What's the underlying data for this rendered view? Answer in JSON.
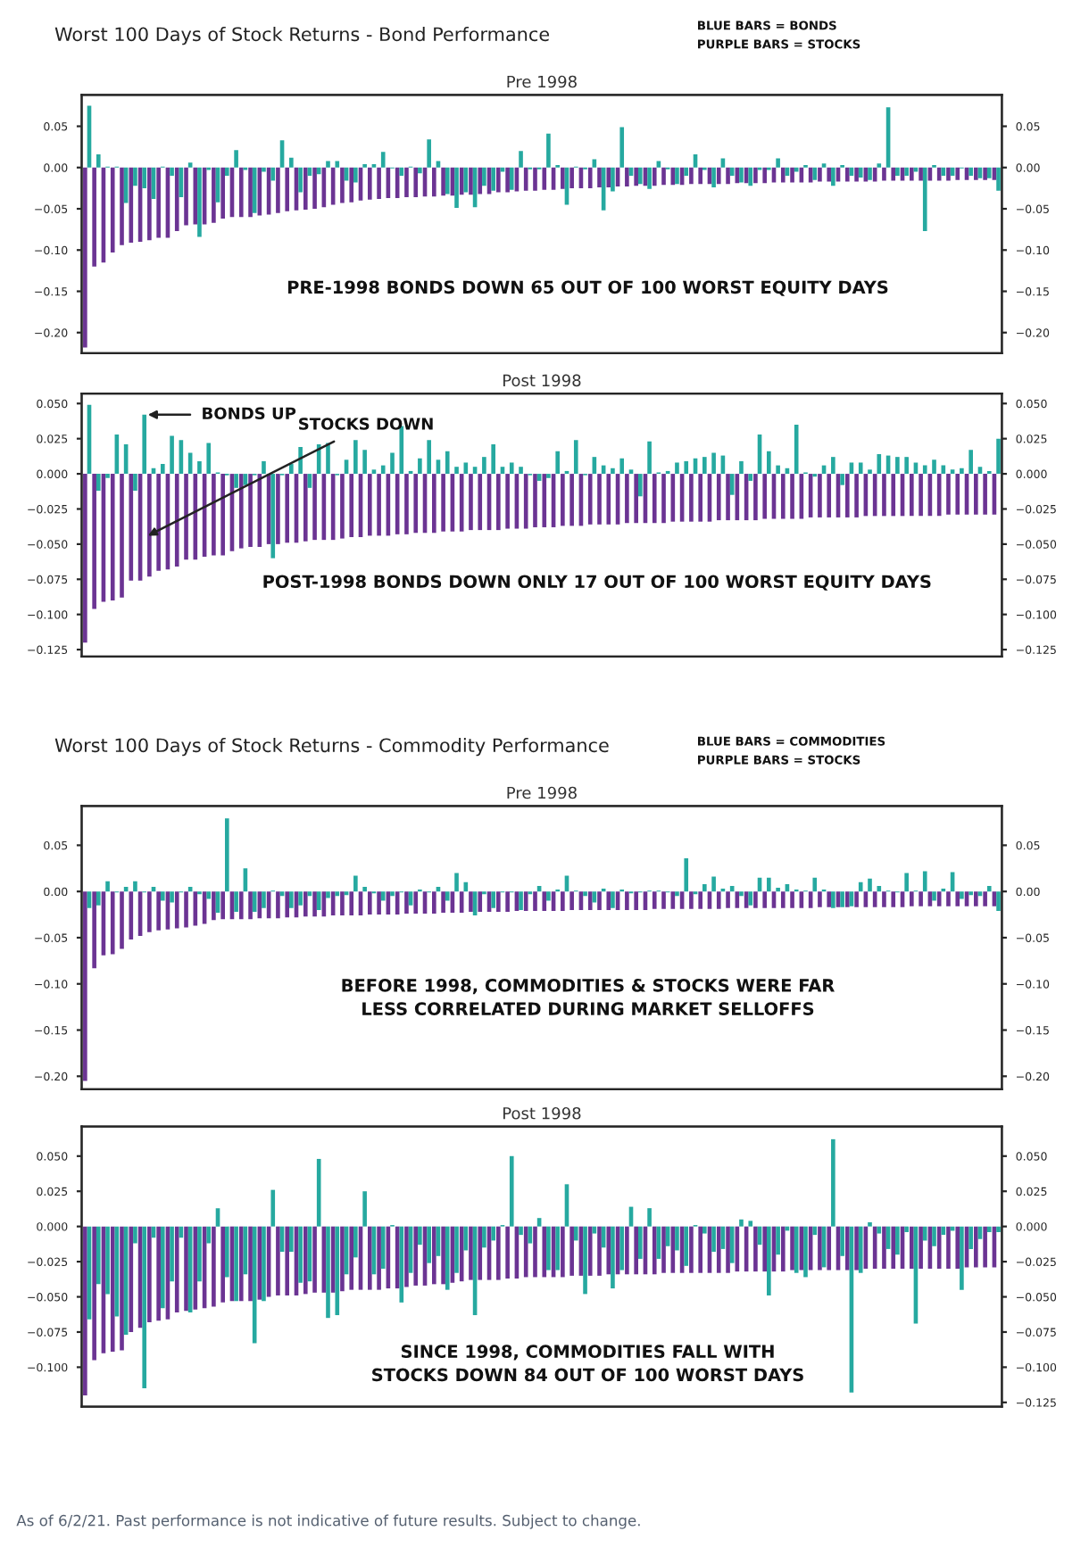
{
  "chart_data": [
    {
      "type": "bar",
      "title": "Pre 1998",
      "annotations": [
        "Worst 100 Days of Stock Returns - Bond Performance",
        "BLUE BARS = BONDS",
        "PURPLE BARS = STOCKS",
        "PRE-1998 BONDS DOWN 65 OUT OF 100 WORST EQUITY DAYS"
      ],
      "categories": [
        null,
        null,
        null,
        null,
        null,
        null,
        null,
        null,
        null,
        null,
        null,
        null,
        null,
        null,
        null,
        null,
        null,
        null,
        null,
        null,
        null,
        null,
        null,
        null,
        null,
        null,
        null,
        null,
        null,
        null,
        null,
        null,
        null,
        null,
        null,
        null,
        null,
        null,
        null,
        null,
        null,
        null,
        null,
        null,
        null,
        null,
        null,
        null,
        null,
        null,
        null,
        null,
        null,
        null,
        null,
        null,
        null,
        null,
        null,
        null,
        null,
        null,
        null,
        null,
        null,
        null,
        null,
        null,
        null,
        null,
        null,
        null,
        null,
        null,
        null,
        null,
        null,
        null,
        null,
        null,
        null,
        null,
        null,
        null,
        null,
        null,
        null,
        null,
        null,
        null,
        null,
        null,
        null,
        null,
        null,
        null,
        null,
        null,
        null,
        null
      ],
      "tick_labels": "y",
      "ylim": [
        -0.225,
        0.088
      ],
      "yticks": [
        {
          "value": -0.2,
          "label": "−0.20"
        },
        {
          "value": -0.15,
          "label": "−0.15"
        },
        {
          "value": -0.1,
          "label": "−0.10"
        },
        {
          "value": -0.05,
          "label": "−0.05"
        },
        {
          "value": 0,
          "label": "0.00"
        },
        {
          "value": 0.05,
          "label": "0.05"
        }
      ],
      "y2lim": [
        -0.225,
        0.088
      ],
      "y2ticks": [
        {
          "value": -0.2,
          "label": "−0.20"
        },
        {
          "value": -0.15,
          "label": "−0.15"
        },
        {
          "value": -0.1,
          "label": "−0.10"
        },
        {
          "value": -0.05,
          "label": "−0.05"
        },
        {
          "value": 0,
          "label": "0.00"
        },
        {
          "value": 0.05,
          "label": "0.05"
        }
      ],
      "series": [
        {
          "color": "#6b3493",
          "values": [
            -0.218,
            -0.12,
            -0.115,
            -0.103,
            -0.094,
            -0.091,
            -0.09,
            -0.088,
            -0.085,
            -0.085,
            -0.077,
            -0.07,
            -0.069,
            -0.069,
            -0.067,
            -0.062,
            -0.06,
            -0.06,
            -0.06,
            -0.058,
            -0.057,
            -0.055,
            -0.053,
            -0.052,
            -0.051,
            -0.05,
            -0.048,
            -0.045,
            -0.043,
            -0.042,
            -0.04,
            -0.039,
            -0.038,
            -0.037,
            -0.037,
            -0.036,
            -0.036,
            -0.035,
            -0.035,
            -0.034,
            -0.034,
            -0.033,
            -0.033,
            -0.032,
            -0.032,
            -0.03,
            -0.03,
            -0.029,
            -0.028,
            -0.028,
            -0.027,
            -0.027,
            -0.026,
            -0.025,
            -0.025,
            -0.025,
            -0.024,
            -0.024,
            -0.023,
            -0.023,
            -0.022,
            -0.022,
            -0.022,
            -0.021,
            -0.021,
            -0.021,
            -0.02,
            -0.02,
            -0.02,
            -0.02,
            -0.02,
            -0.019,
            -0.019,
            -0.019,
            -0.019,
            -0.018,
            -0.018,
            -0.018,
            -0.018,
            -0.018,
            -0.017,
            -0.017,
            -0.017,
            -0.017,
            -0.017,
            -0.017,
            -0.017,
            -0.016,
            -0.016,
            -0.016,
            -0.016,
            -0.016,
            -0.016,
            -0.016,
            -0.016,
            -0.015,
            -0.015,
            -0.015,
            -0.015,
            -0.015
          ]
        },
        {
          "color": "#26a9a0",
          "values": [
            0.075,
            0.016,
            0.001,
            0.001,
            -0.043,
            -0.022,
            -0.025,
            -0.038,
            0.001,
            -0.01,
            -0.036,
            0.006,
            -0.084,
            -0.003,
            -0.042,
            -0.01,
            0.021,
            -0.003,
            -0.055,
            -0.005,
            -0.016,
            0.033,
            0.012,
            -0.03,
            -0.01,
            -0.008,
            0.008,
            0.008,
            -0.016,
            -0.018,
            0.004,
            0.004,
            0.019,
            -0.001,
            -0.01,
            0.001,
            -0.007,
            0.034,
            0.008,
            -0.032,
            -0.049,
            -0.03,
            -0.048,
            -0.022,
            -0.028,
            -0.005,
            -0.027,
            0.02,
            -0.002,
            -0.002,
            0.041,
            0.003,
            -0.045,
            0.001,
            -0.002,
            0.01,
            -0.052,
            -0.029,
            0.049,
            -0.01,
            -0.02,
            -0.026,
            0.008,
            -0.002,
            -0.02,
            -0.01,
            0.016,
            -0.003,
            -0.024,
            0.011,
            -0.01,
            -0.018,
            -0.022,
            -0.003,
            -0.003,
            0.011,
            -0.01,
            -0.005,
            0.003,
            -0.015,
            0.005,
            -0.022,
            0.003,
            -0.01,
            -0.012,
            -0.015,
            0.005,
            0.073,
            -0.01,
            -0.01,
            -0.005,
            -0.077,
            0.003,
            -0.01,
            -0.01,
            -0.001,
            -0.01,
            -0.013,
            -0.013,
            -0.028
          ]
        }
      ]
    },
    {
      "type": "bar",
      "title": "Post 1998",
      "annotations": [
        "BONDS UP",
        "STOCKS DOWN",
        "POST-1998 BONDS DOWN ONLY 17 OUT OF 100 WORST EQUITY DAYS"
      ],
      "categories": [
        null,
        null,
        null,
        null,
        null,
        null,
        null,
        null,
        null,
        null,
        null,
        null,
        null,
        null,
        null,
        null,
        null,
        null,
        null,
        null,
        null,
        null,
        null,
        null,
        null,
        null,
        null,
        null,
        null,
        null,
        null,
        null,
        null,
        null,
        null,
        null,
        null,
        null,
        null,
        null,
        null,
        null,
        null,
        null,
        null,
        null,
        null,
        null,
        null,
        null,
        null,
        null,
        null,
        null,
        null,
        null,
        null,
        null,
        null,
        null,
        null,
        null,
        null,
        null,
        null,
        null,
        null,
        null,
        null,
        null,
        null,
        null,
        null,
        null,
        null,
        null,
        null,
        null,
        null,
        null,
        null,
        null,
        null,
        null,
        null,
        null,
        null,
        null,
        null,
        null,
        null,
        null,
        null,
        null,
        null,
        null,
        null,
        null,
        null,
        null
      ],
      "tick_labels": "y",
      "ylim": [
        -0.13,
        0.057
      ],
      "yticks": [
        {
          "value": -0.125,
          "label": "−0.125"
        },
        {
          "value": -0.1,
          "label": "−0.100"
        },
        {
          "value": -0.075,
          "label": "−0.075"
        },
        {
          "value": -0.05,
          "label": "−0.050"
        },
        {
          "value": -0.025,
          "label": "−0.025"
        },
        {
          "value": 0,
          "label": "0.000"
        },
        {
          "value": 0.025,
          "label": "0.025"
        },
        {
          "value": 0.05,
          "label": "0.050"
        }
      ],
      "y2lim": [
        -0.13,
        0.057
      ],
      "y2ticks": [
        {
          "value": -0.125,
          "label": "−0.125"
        },
        {
          "value": -0.1,
          "label": "−0.100"
        },
        {
          "value": -0.075,
          "label": "−0.075"
        },
        {
          "value": -0.05,
          "label": "−0.050"
        },
        {
          "value": -0.025,
          "label": "−0.025"
        },
        {
          "value": 0,
          "label": "0.000"
        },
        {
          "value": 0.025,
          "label": "0.025"
        },
        {
          "value": 0.05,
          "label": "0.050"
        }
      ],
      "series": [
        {
          "color": "#6b3493",
          "values": [
            -0.12,
            -0.096,
            -0.091,
            -0.09,
            -0.088,
            -0.076,
            -0.076,
            -0.073,
            -0.069,
            -0.068,
            -0.066,
            -0.061,
            -0.061,
            -0.059,
            -0.058,
            -0.058,
            -0.055,
            -0.053,
            -0.052,
            -0.052,
            -0.05,
            -0.05,
            -0.049,
            -0.049,
            -0.048,
            -0.047,
            -0.047,
            -0.047,
            -0.046,
            -0.045,
            -0.045,
            -0.044,
            -0.044,
            -0.044,
            -0.043,
            -0.043,
            -0.042,
            -0.042,
            -0.042,
            -0.041,
            -0.041,
            -0.041,
            -0.04,
            -0.04,
            -0.04,
            -0.04,
            -0.039,
            -0.039,
            -0.039,
            -0.038,
            -0.038,
            -0.038,
            -0.037,
            -0.037,
            -0.037,
            -0.036,
            -0.036,
            -0.036,
            -0.036,
            -0.035,
            -0.035,
            -0.035,
            -0.035,
            -0.035,
            -0.034,
            -0.034,
            -0.034,
            -0.034,
            -0.034,
            -0.033,
            -0.033,
            -0.033,
            -0.033,
            -0.033,
            -0.032,
            -0.032,
            -0.032,
            -0.032,
            -0.032,
            -0.031,
            -0.031,
            -0.031,
            -0.031,
            -0.031,
            -0.031,
            -0.03,
            -0.03,
            -0.03,
            -0.03,
            -0.03,
            -0.03,
            -0.03,
            -0.03,
            -0.03,
            -0.029,
            -0.029,
            -0.029,
            -0.029,
            -0.029,
            -0.029
          ]
        },
        {
          "color": "#26a9a0",
          "values": [
            0.049,
            -0.012,
            -0.003,
            0.028,
            0.021,
            -0.012,
            0.042,
            0.004,
            0.007,
            0.027,
            0.024,
            0.015,
            0.009,
            0.022,
            0.001,
            -0.001,
            -0.01,
            -0.008,
            -0.001,
            0.009,
            -0.06,
            -0.001,
            0.007,
            0.019,
            -0.01,
            0.021,
            0.022,
            -0.001,
            0.01,
            0.024,
            0.017,
            0.003,
            0.006,
            0.015,
            0.034,
            0.002,
            0.011,
            0.024,
            0.01,
            0.016,
            0.005,
            0.008,
            0.005,
            0.012,
            0.021,
            0.005,
            0.008,
            0.005,
            -0.001,
            -0.005,
            -0.003,
            0.016,
            0.002,
            0.024,
            -0.001,
            0.012,
            0.006,
            0.004,
            0.011,
            0.003,
            -0.016,
            0.023,
            0.001,
            0.002,
            0.008,
            0.009,
            0.011,
            0.012,
            0.015,
            0.013,
            -0.015,
            0.009,
            -0.005,
            0.028,
            0.016,
            0.006,
            0.004,
            0.035,
            0.001,
            -0.002,
            0.006,
            0.012,
            -0.008,
            0.008,
            0.008,
            0.003,
            0.014,
            0.013,
            0.012,
            0.012,
            0.008,
            0.006,
            0.01,
            0.006,
            0.003,
            0.004,
            0.017,
            0.005,
            0.002,
            0.025
          ]
        }
      ]
    },
    {
      "type": "bar",
      "title": "Pre 1998",
      "annotations": [
        "Worst 100 Days of Stock Returns - Commodity Performance",
        "BLUE BARS = COMMODITIES",
        "PURPLE BARS = STOCKS",
        "BEFORE 1998, COMMODITIES & STOCKS WERE FAR\nLESS CORRELATED DURING MARKET SELLOFFS"
      ],
      "categories": [
        null,
        null,
        null,
        null,
        null,
        null,
        null,
        null,
        null,
        null,
        null,
        null,
        null,
        null,
        null,
        null,
        null,
        null,
        null,
        null,
        null,
        null,
        null,
        null,
        null,
        null,
        null,
        null,
        null,
        null,
        null,
        null,
        null,
        null,
        null,
        null,
        null,
        null,
        null,
        null,
        null,
        null,
        null,
        null,
        null,
        null,
        null,
        null,
        null,
        null,
        null,
        null,
        null,
        null,
        null,
        null,
        null,
        null,
        null,
        null,
        null,
        null,
        null,
        null,
        null,
        null,
        null,
        null,
        null,
        null,
        null,
        null,
        null,
        null,
        null,
        null,
        null,
        null,
        null,
        null,
        null,
        null,
        null,
        null,
        null,
        null,
        null,
        null,
        null,
        null,
        null,
        null,
        null,
        null,
        null,
        null,
        null,
        null,
        null,
        null
      ],
      "tick_labels": "y",
      "ylim": [
        -0.214,
        0.0925
      ],
      "yticks": [
        {
          "value": -0.2,
          "label": "−0.20"
        },
        {
          "value": -0.15,
          "label": "−0.15"
        },
        {
          "value": -0.1,
          "label": "−0.10"
        },
        {
          "value": -0.05,
          "label": "−0.05"
        },
        {
          "value": 0,
          "label": "0.00"
        },
        {
          "value": 0.05,
          "label": "0.05"
        }
      ],
      "y2lim": [
        -0.214,
        0.0925
      ],
      "y2ticks": [
        {
          "value": -0.2,
          "label": "−0.20"
        },
        {
          "value": -0.15,
          "label": "−0.15"
        },
        {
          "value": -0.1,
          "label": "−0.10"
        },
        {
          "value": -0.05,
          "label": "−0.05"
        },
        {
          "value": 0,
          "label": "0.00"
        },
        {
          "value": 0.05,
          "label": "0.05"
        }
      ],
      "series": [
        {
          "color": "#6b3493",
          "values": [
            -0.205,
            -0.083,
            -0.069,
            -0.068,
            -0.062,
            -0.052,
            -0.048,
            -0.044,
            -0.042,
            -0.041,
            -0.04,
            -0.039,
            -0.037,
            -0.035,
            -0.031,
            -0.03,
            -0.03,
            -0.03,
            -0.03,
            -0.029,
            -0.029,
            -0.029,
            -0.028,
            -0.028,
            -0.027,
            -0.027,
            -0.027,
            -0.026,
            -0.026,
            -0.026,
            -0.026,
            -0.025,
            -0.025,
            -0.025,
            -0.025,
            -0.024,
            -0.024,
            -0.024,
            -0.024,
            -0.023,
            -0.023,
            -0.023,
            -0.022,
            -0.022,
            -0.022,
            -0.022,
            -0.022,
            -0.021,
            -0.021,
            -0.021,
            -0.021,
            -0.021,
            -0.021,
            -0.02,
            -0.02,
            -0.02,
            -0.02,
            -0.02,
            -0.02,
            -0.02,
            -0.02,
            -0.02,
            -0.019,
            -0.019,
            -0.019,
            -0.019,
            -0.019,
            -0.019,
            -0.019,
            -0.019,
            -0.018,
            -0.018,
            -0.018,
            -0.018,
            -0.018,
            -0.018,
            -0.018,
            -0.018,
            -0.018,
            -0.018,
            -0.017,
            -0.017,
            -0.017,
            -0.017,
            -0.017,
            -0.017,
            -0.017,
            -0.017,
            -0.017,
            -0.017,
            -0.016,
            -0.016,
            -0.016,
            -0.016,
            -0.016,
            -0.016,
            -0.016,
            -0.016,
            -0.016,
            -0.016
          ]
        },
        {
          "color": "#26a9a0",
          "values": [
            -0.018,
            -0.015,
            0.011,
            -0.001,
            0.005,
            0.011,
            -0.001,
            0.005,
            -0.01,
            -0.012,
            -0.001,
            0.005,
            -0.003,
            -0.008,
            -0.023,
            0.079,
            -0.022,
            0.025,
            -0.022,
            -0.018,
            0.001,
            -0.005,
            -0.018,
            -0.015,
            -0.005,
            -0.02,
            -0.007,
            -0.005,
            -0.004,
            0.017,
            0.005,
            -0.002,
            -0.01,
            -0.005,
            -0.001,
            -0.015,
            0.002,
            -0.001,
            0.005,
            -0.01,
            0.02,
            0.01,
            -0.026,
            -0.003,
            -0.018,
            -0.001,
            -0.001,
            -0.02,
            -0.003,
            0.006,
            -0.01,
            0.002,
            0.017,
            0.001,
            -0.005,
            -0.012,
            0.003,
            -0.018,
            0.002,
            -0.002,
            -0.001,
            0.001,
            0.001,
            -0.001,
            -0.005,
            0.036,
            -0.003,
            0.008,
            0.016,
            0.003,
            0.006,
            -0.005,
            -0.015,
            0.015,
            0.015,
            0.004,
            0.008,
            0.002,
            0.001,
            0.015,
            0.002,
            -0.018,
            -0.017,
            -0.016,
            0.01,
            0.014,
            0.006,
            0.001,
            -0.001,
            0.02,
            0.001,
            0.022,
            -0.01,
            0.003,
            0.021,
            -0.008,
            -0.004,
            -0.005,
            0.006,
            -0.021
          ]
        }
      ]
    },
    {
      "type": "bar",
      "title": "Post 1998",
      "annotations": [
        "SINCE 1998, COMMODITIES FALL WITH\nSTOCKS DOWN 84 OUT OF 100 WORST DAYS",
        "As of 6/2/21. Past performance is not indicative of future results. Subject to change."
      ],
      "categories": [
        null,
        null,
        null,
        null,
        null,
        null,
        null,
        null,
        null,
        null,
        null,
        null,
        null,
        null,
        null,
        null,
        null,
        null,
        null,
        null,
        null,
        null,
        null,
        null,
        null,
        null,
        null,
        null,
        null,
        null,
        null,
        null,
        null,
        null,
        null,
        null,
        null,
        null,
        null,
        null,
        null,
        null,
        null,
        null,
        null,
        null,
        null,
        null,
        null,
        null,
        null,
        null,
        null,
        null,
        null,
        null,
        null,
        null,
        null,
        null,
        null,
        null,
        null,
        null,
        null,
        null,
        null,
        null,
        null,
        null,
        null,
        null,
        null,
        null,
        null,
        null,
        null,
        null,
        null,
        null,
        null,
        null,
        null,
        null,
        null,
        null,
        null,
        null,
        null,
        null,
        null,
        null,
        null,
        null,
        null,
        null,
        null,
        null,
        null,
        null
      ],
      "tick_labels": "y",
      "ylim": [
        -0.128,
        0.071
      ],
      "yticks": [
        {
          "value": -0.1,
          "label": "−0.100"
        },
        {
          "value": -0.075,
          "label": "−0.075"
        },
        {
          "value": -0.05,
          "label": "−0.050"
        },
        {
          "value": -0.025,
          "label": "−0.025"
        },
        {
          "value": 0,
          "label": "0.000"
        },
        {
          "value": 0.025,
          "label": "0.025"
        },
        {
          "value": 0.05,
          "label": "0.050"
        }
      ],
      "y2lim": [
        -0.128,
        0.071
      ],
      "y2ticks": [
        {
          "value": -0.125,
          "label": "−0.125"
        },
        {
          "value": -0.1,
          "label": "−0.100"
        },
        {
          "value": -0.075,
          "label": "−0.075"
        },
        {
          "value": -0.05,
          "label": "−0.050"
        },
        {
          "value": -0.025,
          "label": "−0.025"
        },
        {
          "value": 0,
          "label": "0.000"
        },
        {
          "value": 0.025,
          "label": "0.025"
        },
        {
          "value": 0.05,
          "label": "0.050"
        }
      ],
      "series": [
        {
          "color": "#6b3493",
          "values": [
            -0.12,
            -0.095,
            -0.09,
            -0.089,
            -0.088,
            -0.075,
            -0.072,
            -0.068,
            -0.067,
            -0.066,
            -0.061,
            -0.06,
            -0.059,
            -0.058,
            -0.057,
            -0.054,
            -0.053,
            -0.053,
            -0.053,
            -0.052,
            -0.05,
            -0.049,
            -0.049,
            -0.049,
            -0.048,
            -0.047,
            -0.047,
            -0.047,
            -0.046,
            -0.045,
            -0.045,
            -0.045,
            -0.045,
            -0.044,
            -0.044,
            -0.043,
            -0.042,
            -0.042,
            -0.041,
            -0.041,
            -0.04,
            -0.039,
            -0.038,
            -0.038,
            -0.038,
            -0.038,
            -0.037,
            -0.037,
            -0.036,
            -0.036,
            -0.036,
            -0.036,
            -0.036,
            -0.035,
            -0.035,
            -0.035,
            -0.035,
            -0.034,
            -0.034,
            -0.034,
            -0.034,
            -0.034,
            -0.034,
            -0.033,
            -0.033,
            -0.033,
            -0.033,
            -0.033,
            -0.033,
            -0.033,
            -0.033,
            -0.032,
            -0.032,
            -0.032,
            -0.032,
            -0.032,
            -0.032,
            -0.031,
            -0.031,
            -0.031,
            -0.031,
            -0.031,
            -0.031,
            -0.031,
            -0.031,
            -0.03,
            -0.03,
            -0.03,
            -0.03,
            -0.03,
            -0.03,
            -0.03,
            -0.03,
            -0.03,
            -0.03,
            -0.03,
            -0.029,
            -0.029,
            -0.029,
            -0.029
          ]
        },
        {
          "color": "#26a9a0",
          "values": [
            -0.066,
            -0.041,
            -0.048,
            -0.064,
            -0.077,
            -0.012,
            -0.115,
            -0.008,
            -0.058,
            -0.039,
            -0.008,
            -0.061,
            -0.039,
            -0.012,
            0.013,
            -0.036,
            -0.053,
            -0.034,
            -0.083,
            -0.053,
            0.026,
            -0.018,
            -0.018,
            -0.04,
            -0.039,
            0.048,
            -0.065,
            -0.063,
            -0.034,
            -0.022,
            0.025,
            -0.034,
            -0.03,
            0.001,
            -0.054,
            -0.033,
            -0.013,
            -0.026,
            -0.021,
            -0.045,
            -0.033,
            -0.017,
            -0.063,
            -0.015,
            -0.01,
            0.001,
            0.05,
            -0.006,
            -0.012,
            0.006,
            -0.031,
            -0.031,
            0.03,
            -0.01,
            -0.048,
            -0.005,
            -0.015,
            -0.044,
            -0.031,
            0.014,
            -0.023,
            0.013,
            -0.023,
            -0.014,
            -0.017,
            -0.028,
            0.001,
            -0.005,
            -0.018,
            -0.016,
            -0.026,
            0.005,
            0.004,
            -0.013,
            -0.049,
            -0.02,
            -0.003,
            -0.033,
            -0.036,
            -0.006,
            -0.029,
            0.062,
            -0.021,
            -0.118,
            -0.033,
            0.003,
            -0.005,
            -0.016,
            -0.02,
            -0.004,
            -0.069,
            -0.01,
            -0.014,
            -0.006,
            -0.003,
            -0.045,
            -0.016,
            -0.009,
            -0.004,
            -0.004
          ]
        }
      ]
    }
  ]
}
